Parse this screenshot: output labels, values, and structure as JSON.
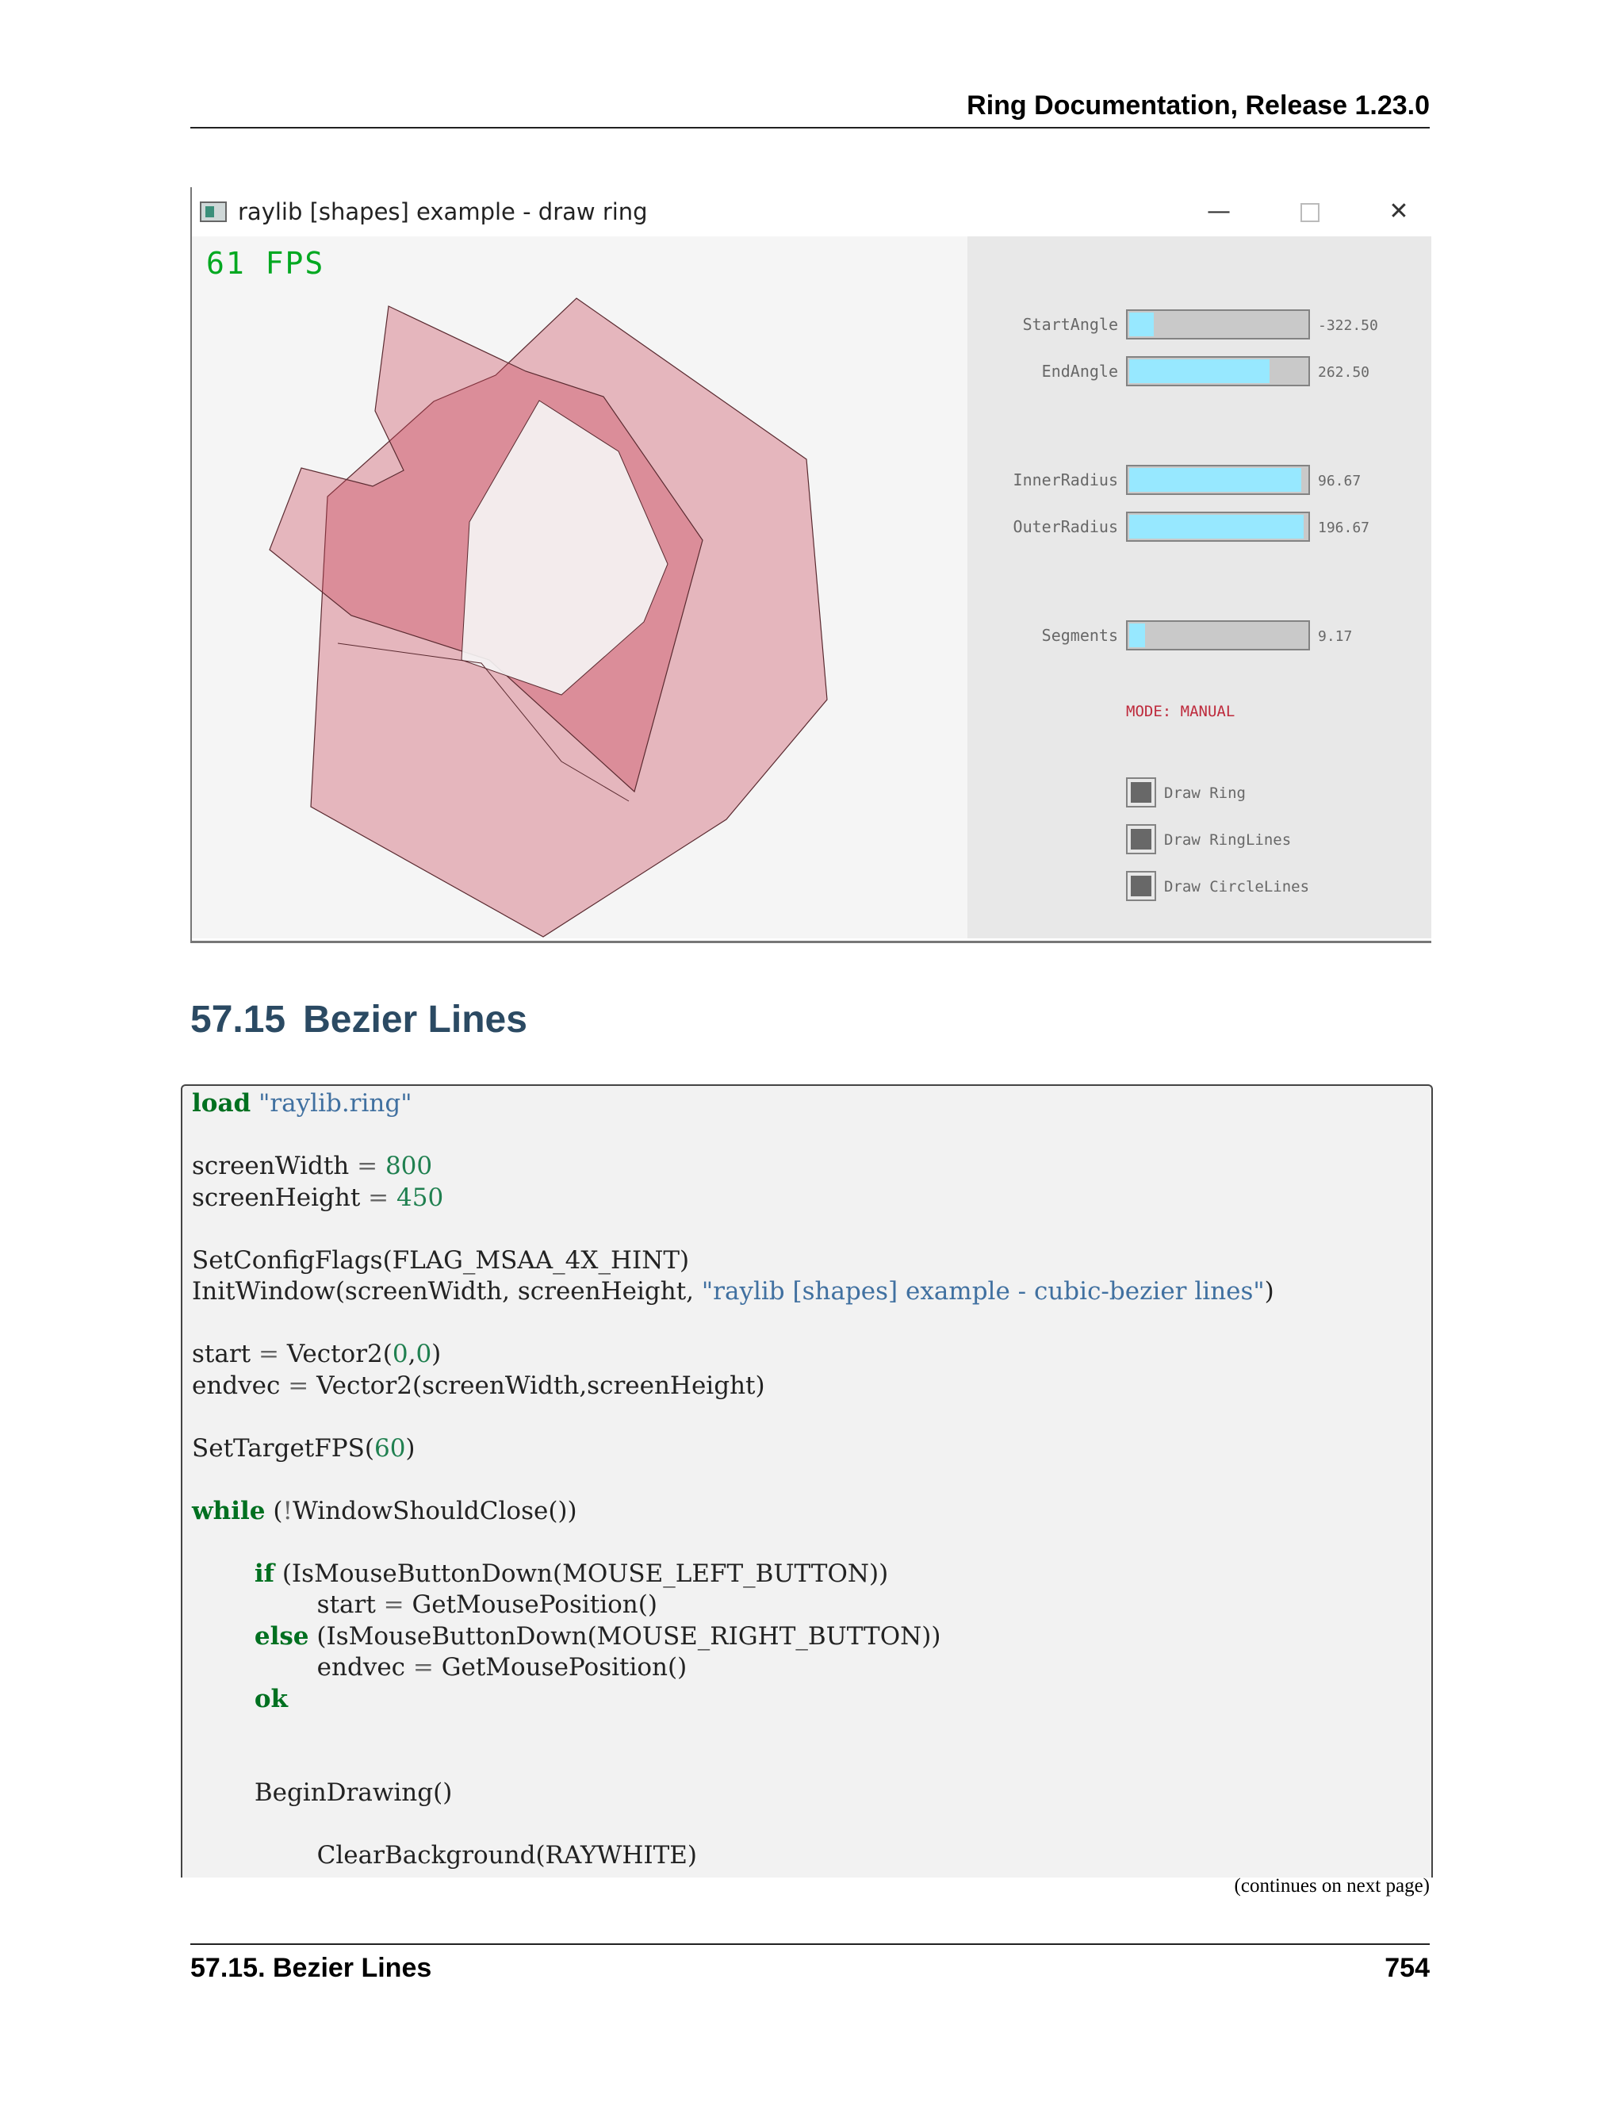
{
  "running_head": "Ring Documentation, Release 1.23.0",
  "window": {
    "title": "raylib [shapes] example - draw ring",
    "fps": "61 FPS",
    "controls": {
      "minimize_glyph": "—",
      "close_glyph": "✕"
    },
    "sliders": [
      {
        "label": "StartAngle",
        "value": "-322.50",
        "fraction": 0.14
      },
      {
        "label": "EndAngle",
        "value": "262.50",
        "fraction": 0.79
      },
      {
        "label": "InnerRadius",
        "value": "96.67",
        "fraction": 0.97
      },
      {
        "label": "OuterRadius",
        "value": "196.67",
        "fraction": 0.98
      },
      {
        "label": "Segments",
        "value": "9.17",
        "fraction": 0.09
      }
    ],
    "mode": "MODE: MANUAL",
    "checkboxes": [
      {
        "label": "Draw Ring",
        "checked": true
      },
      {
        "label": "Draw RingLines",
        "checked": true
      },
      {
        "label": "Draw CircleLines",
        "checked": true
      }
    ],
    "colors": {
      "ring": "#c84155",
      "fps": "#00a820",
      "slider_fill": "#97e8ff",
      "mode": "#be2a3c"
    }
  },
  "section": {
    "number": "57.15",
    "title": "Bezier Lines"
  },
  "code": {
    "lines": [
      [
        [
          "k",
          "load"
        ],
        [
          "p",
          " "
        ],
        [
          "s",
          "\"raylib.ring\""
        ]
      ],
      [],
      [
        [
          "p",
          "screenWidth "
        ],
        [
          "o",
          "="
        ],
        [
          "p",
          " "
        ],
        [
          "n",
          "800"
        ]
      ],
      [
        [
          "p",
          "screenHeight "
        ],
        [
          "o",
          "="
        ],
        [
          "p",
          " "
        ],
        [
          "n",
          "450"
        ]
      ],
      [],
      [
        [
          "p",
          "SetConfigFlags(FLAG_MSAA_4X_HINT)"
        ]
      ],
      [
        [
          "p",
          "InitWindow(screenWidth, screenHeight, "
        ],
        [
          "s",
          "\"raylib [shapes] example - cubic-bezier lines\""
        ],
        [
          "p",
          ")"
        ]
      ],
      [],
      [
        [
          "p",
          "start "
        ],
        [
          "o",
          "="
        ],
        [
          "p",
          " Vector2("
        ],
        [
          "n",
          "0"
        ],
        [
          "p",
          ","
        ],
        [
          "n",
          "0"
        ],
        [
          "p",
          ")"
        ]
      ],
      [
        [
          "p",
          "endvec "
        ],
        [
          "o",
          "="
        ],
        [
          "p",
          " Vector2(screenWidth,screenHeight)"
        ]
      ],
      [],
      [
        [
          "p",
          "SetTargetFPS("
        ],
        [
          "n",
          "60"
        ],
        [
          "p",
          ")"
        ]
      ],
      [],
      [
        [
          "k",
          "while"
        ],
        [
          "p",
          " ("
        ],
        [
          "o",
          "!"
        ],
        [
          "p",
          "WindowShouldClose())"
        ]
      ],
      [],
      [
        [
          "p",
          "        "
        ],
        [
          "k",
          "if"
        ],
        [
          "p",
          " (IsMouseButtonDown(MOUSE_LEFT_BUTTON))"
        ]
      ],
      [
        [
          "p",
          "                start "
        ],
        [
          "o",
          "="
        ],
        [
          "p",
          " GetMousePosition()"
        ]
      ],
      [
        [
          "p",
          "        "
        ],
        [
          "k",
          "else"
        ],
        [
          "p",
          " (IsMouseButtonDown(MOUSE_RIGHT_BUTTON))"
        ]
      ],
      [
        [
          "p",
          "                endvec "
        ],
        [
          "o",
          "="
        ],
        [
          "p",
          " GetMousePosition()"
        ]
      ],
      [
        [
          "p",
          "        "
        ],
        [
          "k",
          "ok"
        ]
      ],
      [],
      [],
      [
        [
          "p",
          "        BeginDrawing()"
        ]
      ],
      [],
      [
        [
          "p",
          "                ClearBackground(RAYWHITE)"
        ]
      ]
    ]
  },
  "continues_note": "(continues on next page)",
  "footer": {
    "section": "57.15.  Bezier Lines",
    "page": "754"
  }
}
